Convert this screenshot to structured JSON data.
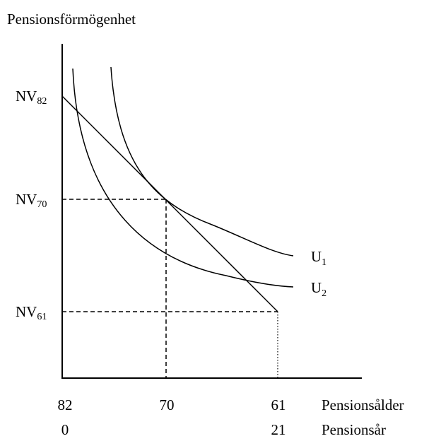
{
  "y_axis_label": "Pensionsförmögenhet",
  "y_labels": [
    {
      "main": "NV",
      "sub": "82"
    },
    {
      "main": "NV",
      "sub": "70"
    },
    {
      "main": "NV",
      "sub": "61"
    }
  ],
  "curves": [
    {
      "main": "U",
      "sub": "1"
    },
    {
      "main": "U",
      "sub": "2"
    }
  ],
  "x_rows": [
    {
      "ticks": [
        "82",
        "70",
        "61"
      ],
      "label": "Pensionsålder"
    },
    {
      "ticks": [
        "0",
        "21"
      ],
      "label": "Pensionsår"
    }
  ]
}
